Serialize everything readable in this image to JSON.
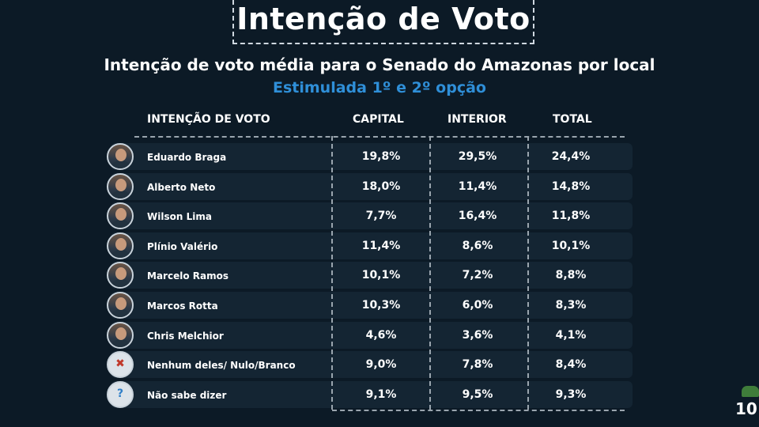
{
  "title": "Intenção de Voto",
  "subtitle": "Intenção de voto média para o Senado do Amazonas por local",
  "subtitle2": "Estimulada  1º e 2º opção",
  "page_number": "10",
  "icons": [
    "avatar-photo",
    "ballot-cross-icon",
    "question-icon",
    "logo-badge-icon"
  ],
  "colors": {
    "background": "#0c1a26",
    "accent": "#2f8fd8",
    "row": "#142533"
  },
  "chart_data": {
    "type": "table",
    "title": "Intenção de Voto",
    "subtitle": "Intenção de voto média para o Senado do Amazonas por local",
    "note": "Estimulada  1º e 2º opção",
    "columns": [
      "INTENÇÃO DE VOTO",
      "CAPITAL",
      "INTERIOR",
      "TOTAL"
    ],
    "rows": [
      {
        "name": "Eduardo Braga",
        "capital": "19,8%",
        "interior": "29,5%",
        "total": "24,4%"
      },
      {
        "name": "Alberto Neto",
        "capital": "18,0%",
        "interior": "11,4%",
        "total": "14,8%"
      },
      {
        "name": "Wilson Lima",
        "capital": "7,7%",
        "interior": "16,4%",
        "total": "11,8%"
      },
      {
        "name": "Plínio Valério",
        "capital": "11,4%",
        "interior": "8,6%",
        "total": "10,1%"
      },
      {
        "name": "Marcelo Ramos",
        "capital": "10,1%",
        "interior": "7,2%",
        "total": "8,8%"
      },
      {
        "name": "Marcos Rotta",
        "capital": "10,3%",
        "interior": "6,0%",
        "total": "8,3%"
      },
      {
        "name": "Chris Melchior",
        "capital": "4,6%",
        "interior": "3,6%",
        "total": "4,1%"
      },
      {
        "name": "Nenhum deles/ Nulo/Branco",
        "capital": "9,0%",
        "interior": "7,8%",
        "total": "8,4%"
      },
      {
        "name": "Não sabe dizer",
        "capital": "9,1%",
        "interior": "9,5%",
        "total": "9,3%"
      }
    ]
  }
}
